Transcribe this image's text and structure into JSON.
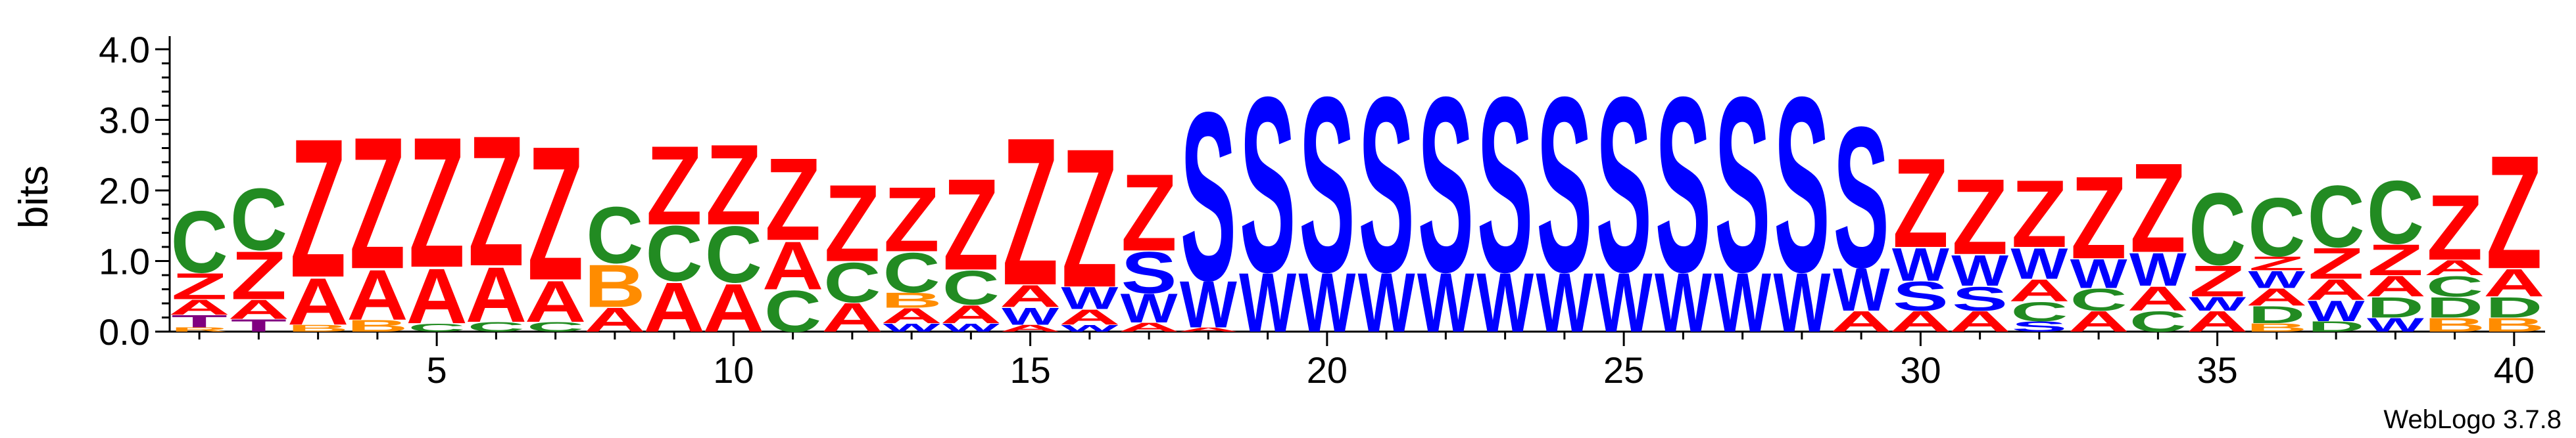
{
  "chart_data": {
    "type": "sequence-logo",
    "ylabel": "bits",
    "ylim": [
      0,
      4.0
    ],
    "xlim": [
      1,
      40
    ],
    "y_ticks": [
      "0.0",
      "1.0",
      "2.0",
      "3.0",
      "4.0"
    ],
    "x_ticks": [
      5,
      10,
      15,
      20,
      25,
      30,
      35,
      40
    ],
    "x_tick_labels": [
      "5",
      "10",
      "15",
      "20",
      "25",
      "30",
      "35",
      "40"
    ],
    "y_minor_ticks_per_unit": 5,
    "x_minor_ticks": true,
    "credit": "WebLogo 3.7.8",
    "colors": {
      "Z": "#ff0000",
      "A": "#ff0000",
      "S": "#0000ff",
      "W": "#0000ff",
      "C": "#228b22",
      "D": "#228b22",
      "B": "#ff8c00",
      "T": "#800080",
      "R": "#ff8c00"
    },
    "positions": [
      [
        [
          "R",
          0.06
        ],
        [
          "T",
          0.18
        ],
        [
          "A",
          0.22
        ],
        [
          "Z",
          0.38
        ],
        [
          "C",
          0.9
        ]
      ],
      [
        [
          "T",
          0.18
        ],
        [
          "A",
          0.28
        ],
        [
          "Z",
          0.7
        ],
        [
          "C",
          0.9
        ]
      ],
      [
        [
          "B",
          0.1
        ],
        [
          "A",
          0.68
        ],
        [
          "Z",
          2.02
        ]
      ],
      [
        [
          "B",
          0.17
        ],
        [
          "A",
          0.73
        ],
        [
          "Z",
          1.92
        ]
      ],
      [
        [
          "C",
          0.12
        ],
        [
          "A",
          0.8
        ],
        [
          "Z",
          1.9
        ]
      ],
      [
        [
          "C",
          0.14
        ],
        [
          "A",
          0.8
        ],
        [
          "Z",
          1.9
        ]
      ],
      [
        [
          "C",
          0.14
        ],
        [
          "A",
          0.6
        ],
        [
          "Z",
          1.95
        ]
      ],
      [
        [
          "A",
          0.35
        ],
        [
          "B",
          0.62
        ],
        [
          "C",
          0.82
        ]
      ],
      [
        [
          "A",
          0.72
        ],
        [
          "C",
          0.8
        ],
        [
          "Z",
          1.15
        ]
      ],
      [
        [
          "A",
          0.7
        ],
        [
          "C",
          0.82
        ],
        [
          "Z",
          1.17
        ]
      ],
      [
        [
          "C",
          0.6
        ],
        [
          "A",
          0.7
        ],
        [
          "Z",
          1.2
        ]
      ],
      [
        [
          "A",
          0.42
        ],
        [
          "C",
          0.58
        ],
        [
          "Z",
          1.12
        ]
      ],
      [
        [
          "W",
          0.12
        ],
        [
          "A",
          0.22
        ],
        [
          "B",
          0.22
        ],
        [
          "C",
          0.58
        ],
        [
          "Z",
          0.94
        ]
      ],
      [
        [
          "W",
          0.12
        ],
        [
          "A",
          0.26
        ],
        [
          "C",
          0.5
        ],
        [
          "Z",
          1.33
        ]
      ],
      [
        [
          "A",
          0.1
        ],
        [
          "W",
          0.25
        ],
        [
          "A",
          0.32
        ],
        [
          "Z",
          2.15
        ]
      ],
      [
        [
          "W",
          0.1
        ],
        [
          "A",
          0.22
        ],
        [
          "W",
          0.32
        ],
        [
          "Z",
          2.02
        ]
      ],
      [
        [
          "A",
          0.13
        ],
        [
          "W",
          0.42
        ],
        [
          "S",
          0.6
        ],
        [
          "Z",
          1.12
        ]
      ],
      [
        [
          "A",
          0.06
        ],
        [
          "W",
          0.68
        ],
        [
          "S",
          2.45
        ]
      ],
      [
        [
          "W",
          0.86
        ],
        [
          "S",
          2.55
        ]
      ],
      [
        [
          "W",
          0.86
        ],
        [
          "S",
          2.55
        ]
      ],
      [
        [
          "W",
          0.86
        ],
        [
          "S",
          2.55
        ]
      ],
      [
        [
          "W",
          0.86
        ],
        [
          "S",
          2.55
        ]
      ],
      [
        [
          "W",
          0.86
        ],
        [
          "S",
          2.55
        ]
      ],
      [
        [
          "W",
          0.86
        ],
        [
          "S",
          2.55
        ]
      ],
      [
        [
          "W",
          0.86
        ],
        [
          "S",
          2.55
        ]
      ],
      [
        [
          "W",
          0.86
        ],
        [
          "S",
          2.55
        ]
      ],
      [
        [
          "W",
          0.86
        ],
        [
          "S",
          2.55
        ]
      ],
      [
        [
          "W",
          0.86
        ],
        [
          "S",
          2.55
        ]
      ],
      [
        [
          "A",
          0.3
        ],
        [
          "W",
          0.62
        ],
        [
          "S",
          2.05
        ]
      ],
      [
        [
          "A",
          0.3
        ],
        [
          "S",
          0.42
        ],
        [
          "W",
          0.48
        ],
        [
          "Z",
          1.3
        ]
      ],
      [
        [
          "A",
          0.3
        ],
        [
          "S",
          0.35
        ],
        [
          "W",
          0.45
        ],
        [
          "Z",
          1.1
        ]
      ],
      [
        [
          "S",
          0.15
        ],
        [
          "C",
          0.28
        ],
        [
          "A",
          0.32
        ],
        [
          "W",
          0.45
        ],
        [
          "Z",
          0.98
        ]
      ],
      [
        [
          "A",
          0.3
        ],
        [
          "C",
          0.32
        ],
        [
          "W",
          0.42
        ],
        [
          "Z",
          1.2
        ]
      ],
      [
        [
          "C",
          0.3
        ],
        [
          "A",
          0.35
        ],
        [
          "W",
          0.48
        ],
        [
          "Z",
          1.3
        ]
      ],
      [
        [
          "A",
          0.3
        ],
        [
          "W",
          0.2
        ],
        [
          "Z",
          0.45
        ],
        [
          "C",
          1.05
        ]
      ],
      [
        [
          "B",
          0.12
        ],
        [
          "D",
          0.25
        ],
        [
          "A",
          0.25
        ],
        [
          "W",
          0.25
        ],
        [
          "Z",
          0.2
        ],
        [
          "C",
          0.85
        ]
      ],
      [
        [
          "D",
          0.15
        ],
        [
          "W",
          0.3
        ],
        [
          "A",
          0.3
        ],
        [
          "Z",
          0.45
        ],
        [
          "C",
          0.9
        ]
      ],
      [
        [
          "W",
          0.2
        ],
        [
          "D",
          0.3
        ],
        [
          "A",
          0.3
        ],
        [
          "Z",
          0.45
        ],
        [
          "C",
          0.92
        ]
      ],
      [
        [
          "B",
          0.2
        ],
        [
          "D",
          0.3
        ],
        [
          "C",
          0.3
        ],
        [
          "A",
          0.22
        ],
        [
          "Z",
          0.95
        ]
      ],
      [
        [
          "B",
          0.2
        ],
        [
          "D",
          0.3
        ],
        [
          "A",
          0.4
        ],
        [
          "Z",
          1.65
        ]
      ]
    ]
  }
}
